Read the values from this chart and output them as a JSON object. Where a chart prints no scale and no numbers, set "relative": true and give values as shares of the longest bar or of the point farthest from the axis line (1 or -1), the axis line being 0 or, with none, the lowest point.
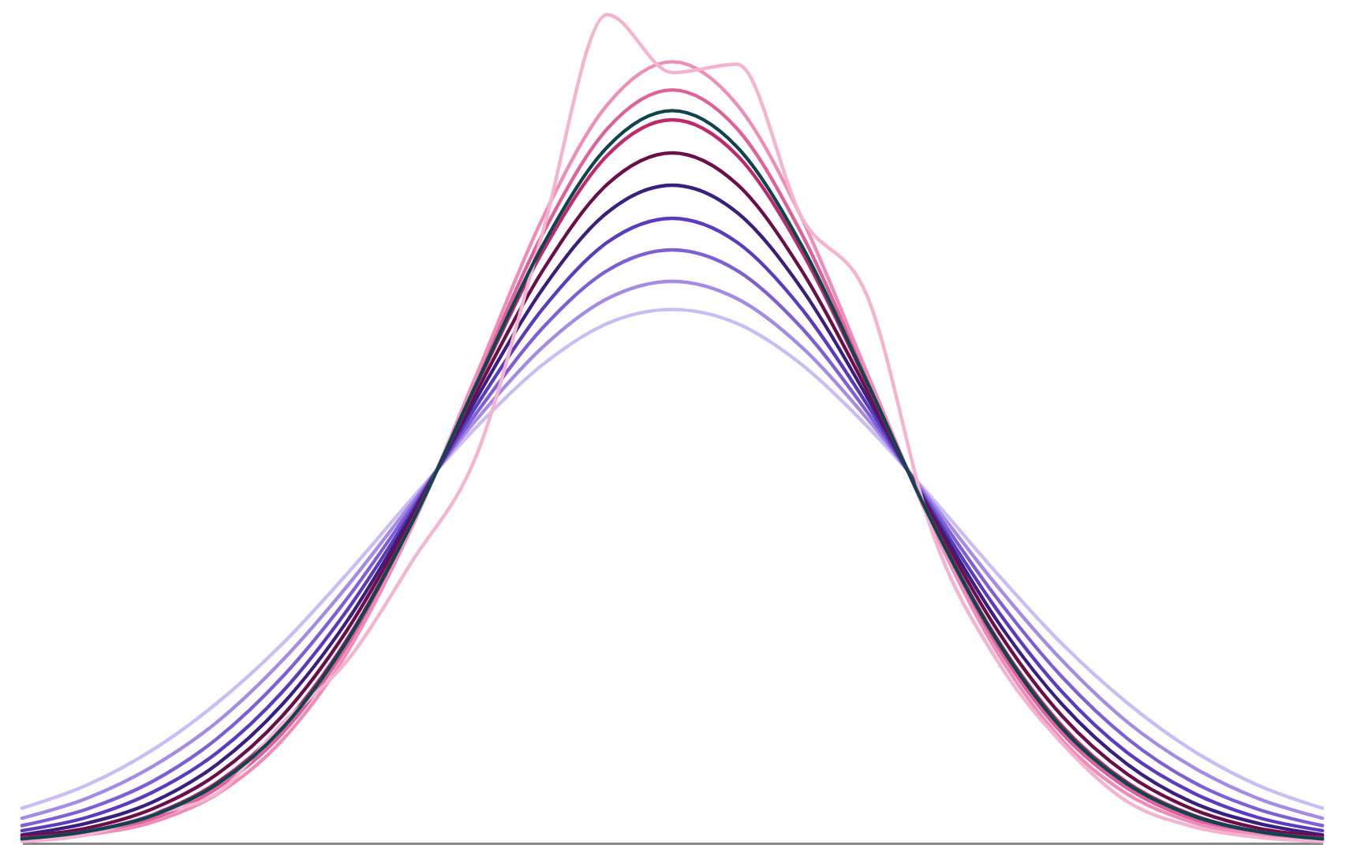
{
  "chart_data": {
    "type": "line",
    "relative": true,
    "grid": false,
    "legend": false,
    "tick_labels": false,
    "marker": "none",
    "line_style": "solid",
    "categories": [
      null,
      null,
      null,
      null,
      null,
      null,
      null,
      null,
      null,
      null,
      null,
      null,
      null,
      null,
      null,
      null,
      null,
      null,
      null,
      null,
      null
    ],
    "series": [
      {
        "color": "#cbbcf6",
        "values": [
          0.042,
          0.07,
          0.112,
          0.169,
          0.24,
          0.325,
          0.416,
          0.503,
          0.577,
          0.627,
          0.644,
          0.627,
          0.577,
          0.503,
          0.416,
          0.325,
          0.24,
          0.169,
          0.112,
          0.07,
          0.042
        ]
      },
      {
        "color": "#a58ae6",
        "values": [
          0.03,
          0.054,
          0.092,
          0.146,
          0.22,
          0.31,
          0.411,
          0.512,
          0.598,
          0.657,
          0.678,
          0.657,
          0.598,
          0.512,
          0.411,
          0.31,
          0.22,
          0.146,
          0.092,
          0.054,
          0.03
        ]
      },
      {
        "color": "#7e5fd6",
        "values": [
          0.021,
          0.041,
          0.074,
          0.126,
          0.2,
          0.295,
          0.406,
          0.52,
          0.621,
          0.691,
          0.716,
          0.691,
          0.621,
          0.52,
          0.406,
          0.295,
          0.2,
          0.126,
          0.074,
          0.041,
          0.021
        ]
      },
      {
        "color": "#5b3bbf",
        "values": [
          0.015,
          0.031,
          0.061,
          0.109,
          0.182,
          0.281,
          0.401,
          0.529,
          0.644,
          0.725,
          0.754,
          0.725,
          0.644,
          0.529,
          0.401,
          0.281,
          0.182,
          0.109,
          0.061,
          0.031,
          0.015
        ]
      },
      {
        "color": "#3a1f80",
        "values": [
          0.01,
          0.024,
          0.049,
          0.095,
          0.167,
          0.268,
          0.397,
          0.538,
          0.668,
          0.761,
          0.794,
          0.761,
          0.668,
          0.538,
          0.397,
          0.268,
          0.167,
          0.095,
          0.049,
          0.024,
          0.01
        ]
      },
      {
        "color": "#6b0f4a",
        "values": [
          0.008,
          0.018,
          0.041,
          0.083,
          0.153,
          0.257,
          0.393,
          0.546,
          0.69,
          0.795,
          0.833,
          0.795,
          0.69,
          0.546,
          0.393,
          0.257,
          0.153,
          0.083,
          0.041,
          0.018,
          0.008
        ]
      },
      {
        "color": "#c02a6a",
        "values": [
          0.006,
          0.014,
          0.034,
          0.073,
          0.141,
          0.246,
          0.388,
          0.554,
          0.713,
          0.83,
          0.873,
          0.83,
          0.713,
          0.554,
          0.388,
          0.246,
          0.141,
          0.073,
          0.034,
          0.014,
          0.006
        ]
      },
      {
        "color": "#e0609a",
        "values": [
          0.004,
          0.012,
          0.029,
          0.066,
          0.132,
          0.238,
          0.385,
          0.561,
          0.734,
          0.862,
          0.909,
          0.862,
          0.734,
          0.561,
          0.385,
          0.238,
          0.132,
          0.066,
          0.029,
          0.012,
          0.004
        ]
      },
      {
        "color": "#f08cb8",
        "values": [
          0.003,
          0.01,
          0.025,
          0.059,
          0.124,
          0.23,
          0.382,
          0.567,
          0.753,
          0.891,
          0.943,
          0.891,
          0.753,
          0.567,
          0.382,
          0.23,
          0.124,
          0.059,
          0.025,
          0.01,
          0.003
        ]
      },
      {
        "color": "#f5b3cf",
        "values": [
          0.002,
          0.01,
          0.034,
          0.06,
          0.144,
          0.22,
          0.34,
          0.47,
          0.735,
          1.0,
          0.93,
          0.94,
          0.754,
          0.66,
          0.375,
          0.22,
          0.12,
          0.05,
          0.02,
          0.007,
          0.002
        ]
      },
      {
        "color": "#0f4451",
        "values": [
          0.005,
          0.014,
          0.033,
          0.071,
          0.138,
          0.244,
          0.387,
          0.556,
          0.72,
          0.84,
          0.884,
          0.84,
          0.72,
          0.556,
          0.387,
          0.244,
          0.138,
          0.071,
          0.033,
          0.014,
          0.005
        ]
      }
    ]
  }
}
